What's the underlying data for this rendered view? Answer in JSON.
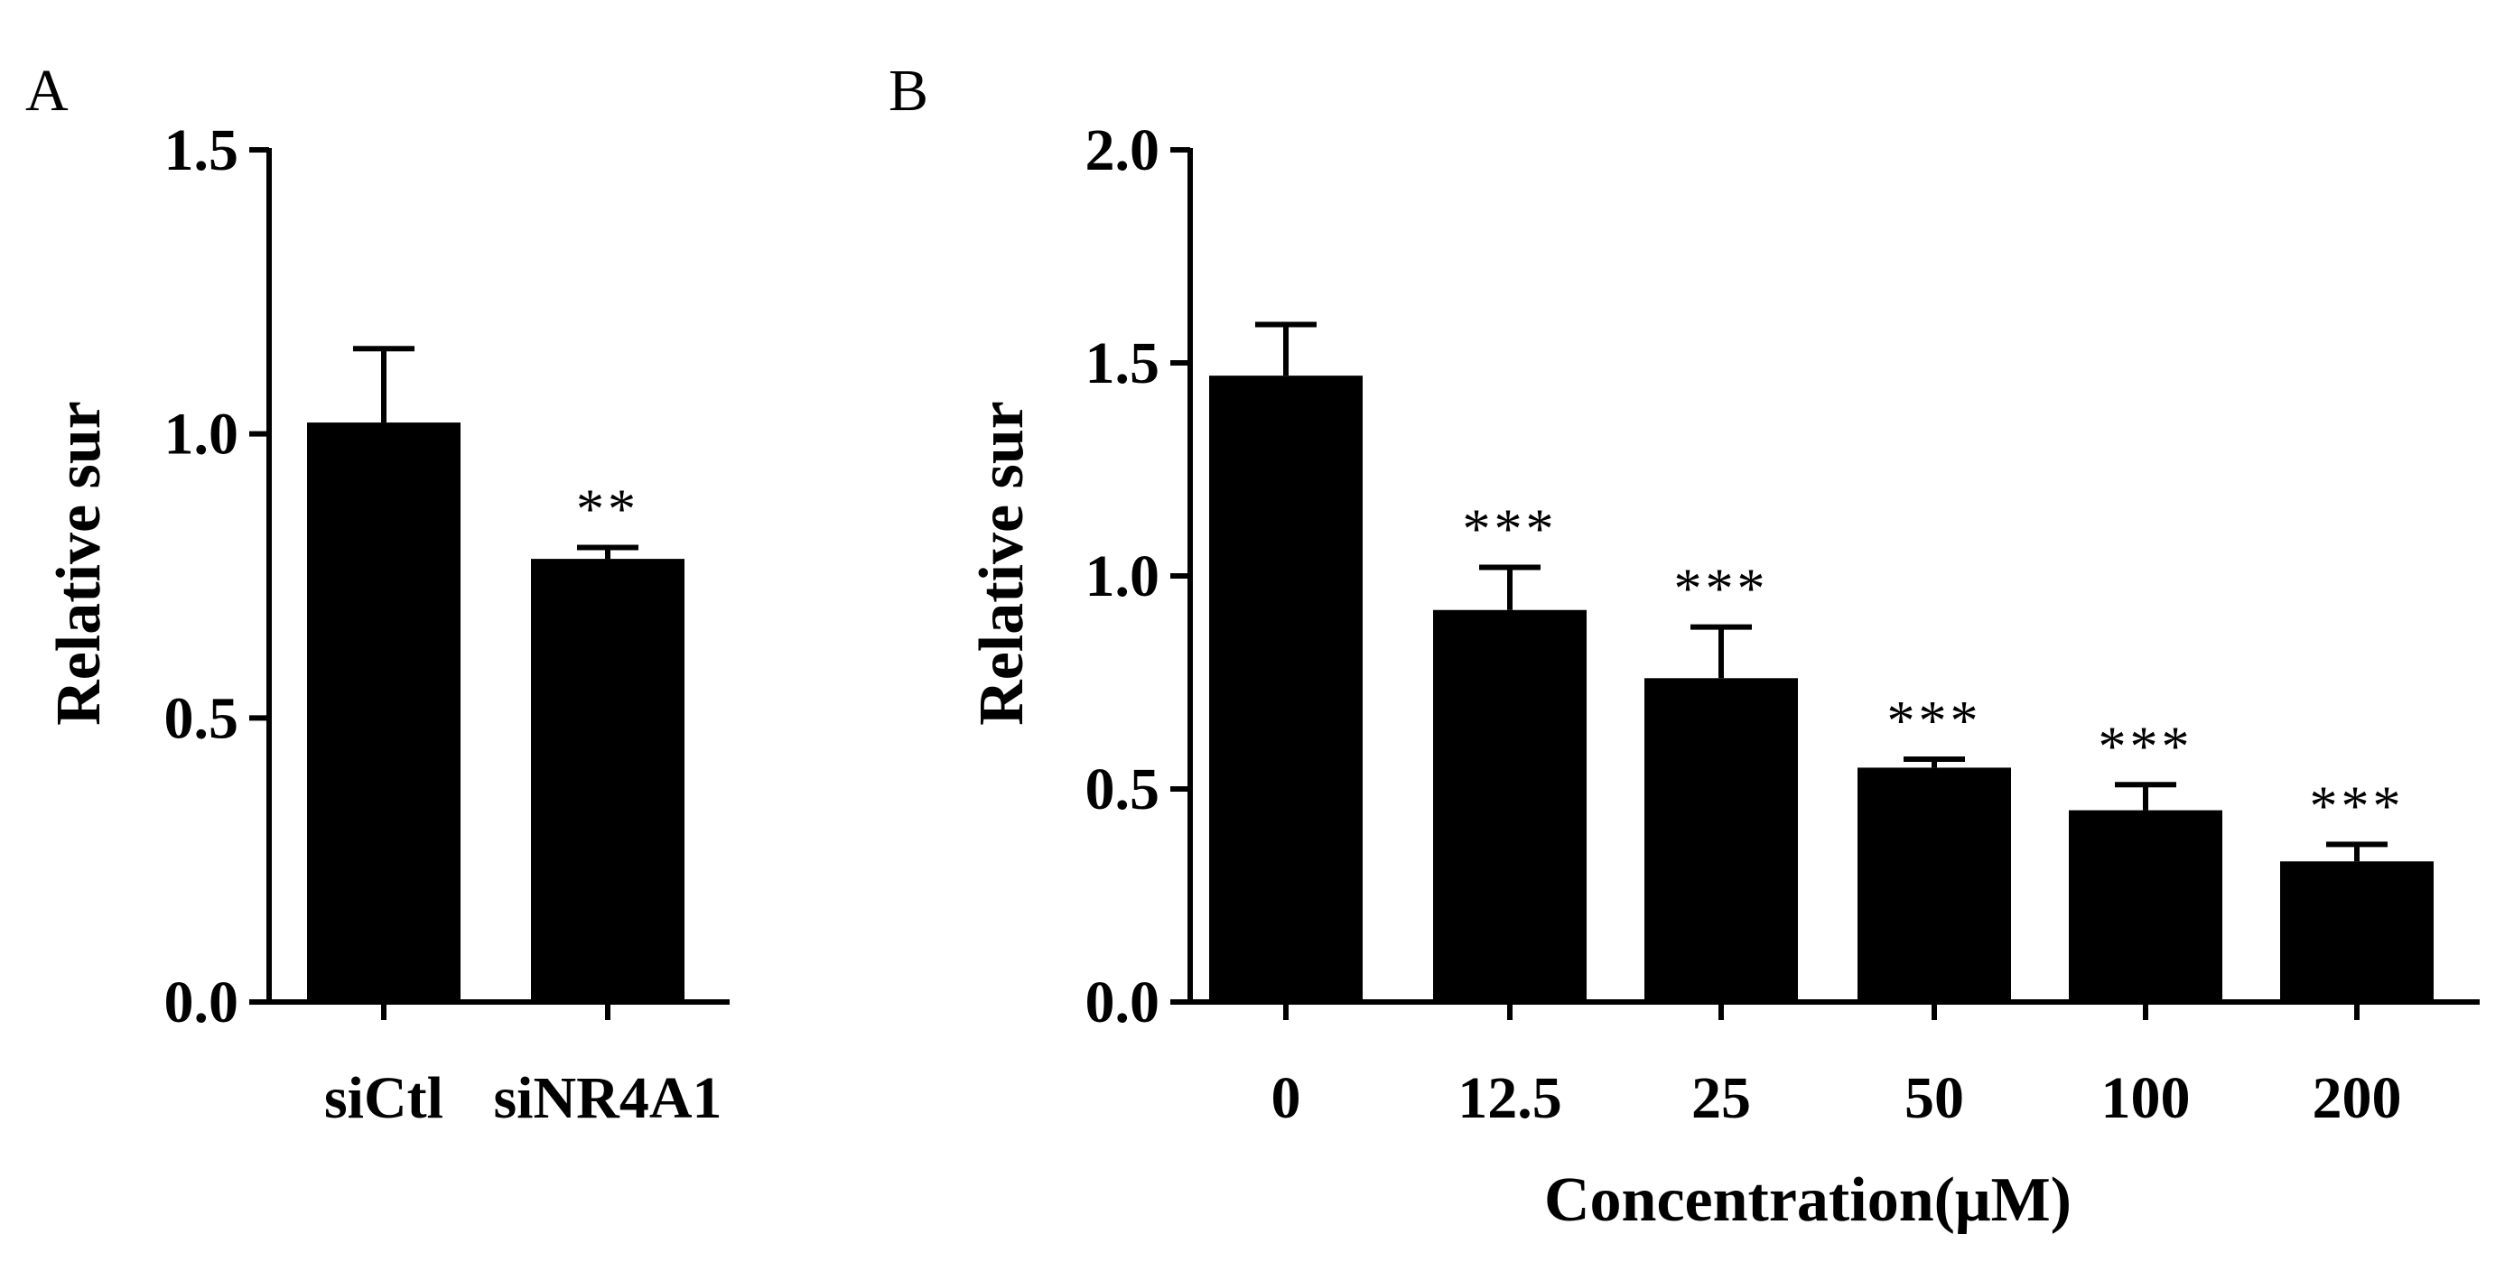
{
  "chart_data": [
    {
      "type": "bar",
      "panel": "A",
      "categories": [
        "siCtl",
        "siNR4A1"
      ],
      "series": [
        {
          "values": [
            1.02,
            0.78
          ],
          "errors": [
            0.13,
            0.02
          ]
        }
      ],
      "annotations": [
        "",
        "**"
      ],
      "ylabel": "Relative sur",
      "xlabel": "",
      "ylim": [
        0,
        1.5
      ],
      "yticks": [
        "0.0",
        "0.5",
        "1.0",
        "1.5"
      ],
      "yticks_values": [
        0,
        0.5,
        1.0,
        1.5
      ],
      "grid": false,
      "bar_color": "#000000"
    },
    {
      "type": "bar",
      "panel": "B",
      "categories": [
        "0",
        "12.5",
        "25",
        "50",
        "100",
        "200"
      ],
      "series": [
        {
          "values": [
            1.47,
            0.92,
            0.76,
            0.55,
            0.45,
            0.33
          ],
          "errors": [
            0.12,
            0.1,
            0.12,
            0.02,
            0.06,
            0.04
          ]
        }
      ],
      "annotations": [
        "",
        "***",
        "***",
        "***",
        "***",
        "***"
      ],
      "ylabel": "Relative sur",
      "xlabel": "Concentration(μM)",
      "ylim": [
        0,
        2.0
      ],
      "yticks": [
        "0.0",
        "0.5",
        "1.0",
        "1.5",
        "2.0"
      ],
      "yticks_values": [
        0,
        0.5,
        1.0,
        1.5,
        2.0
      ],
      "grid": false,
      "bar_color": "#000000"
    }
  ]
}
